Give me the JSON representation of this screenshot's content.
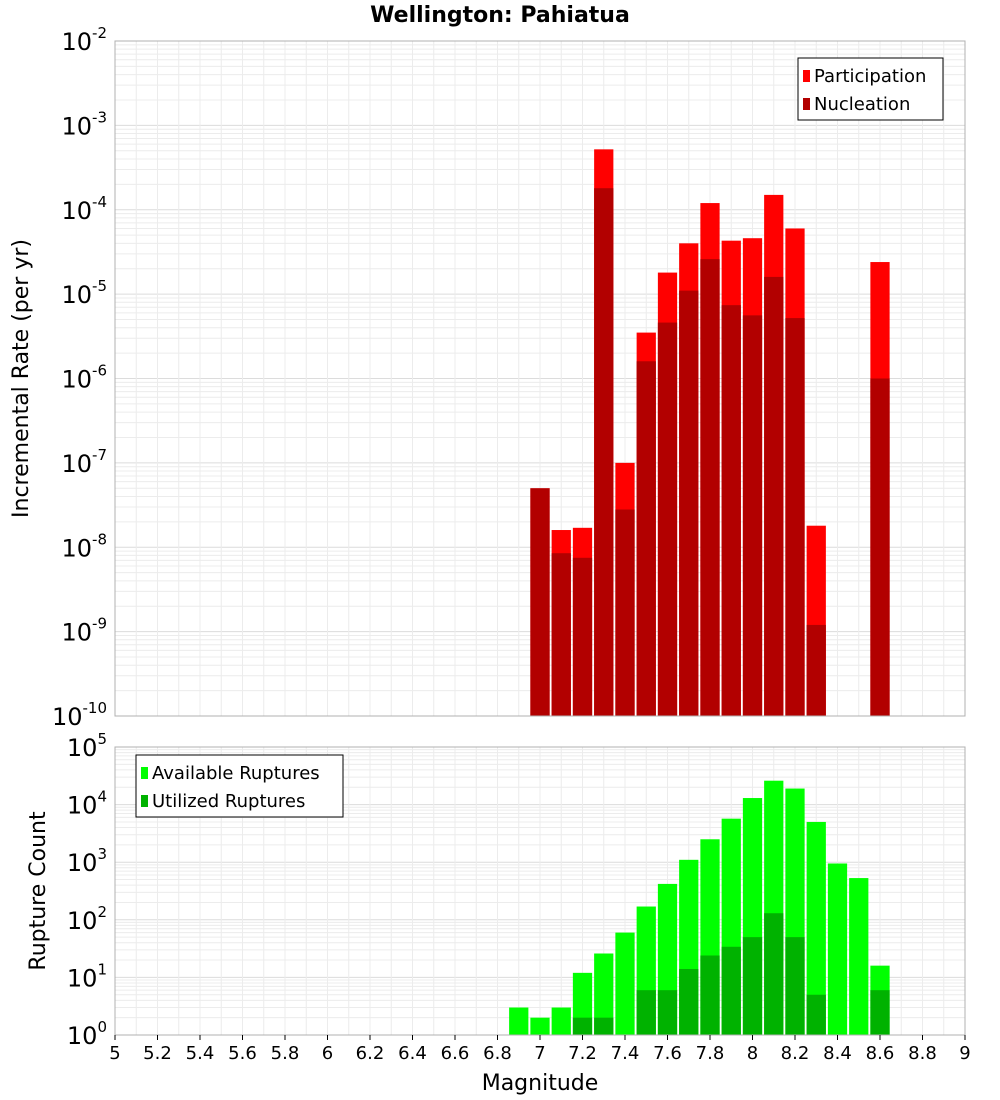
{
  "chart_data": [
    {
      "type": "bar",
      "title": "Wellington: Pahiatua",
      "ylabel": "Incremental Rate (per yr)",
      "xlabel": "",
      "yscale": "log",
      "ylim": [
        1e-10,
        0.01
      ],
      "xlim": [
        5,
        9
      ],
      "bin_width": 0.1,
      "grid": true,
      "legend_position": "top-right",
      "y_tick_exponents": [
        -10,
        -9,
        -8,
        -7,
        -6,
        -5,
        -4,
        -3,
        -2
      ],
      "x": [
        7.0,
        7.1,
        7.2,
        7.3,
        7.4,
        7.5,
        7.6,
        7.7,
        7.8,
        7.9,
        8.0,
        8.1,
        8.2,
        8.3,
        8.6
      ],
      "series": [
        {
          "name": "Participation",
          "color": "#ff0000",
          "values": [
            5e-08,
            1.6e-08,
            1.7e-08,
            0.00052,
            1e-07,
            3.5e-06,
            1.8e-05,
            4e-05,
            0.00012,
            4.3e-05,
            4.6e-05,
            0.00015,
            6e-05,
            1.8e-08,
            2.4e-05
          ]
        },
        {
          "name": "Nucleation",
          "color": "#b20000",
          "values": [
            5e-08,
            8.5e-09,
            7.5e-09,
            0.00018,
            2.8e-08,
            1.6e-06,
            4.6e-06,
            1.1e-05,
            2.6e-05,
            7.4e-06,
            5.6e-06,
            1.6e-05,
            5.2e-06,
            1.2e-09,
            1e-06
          ]
        }
      ]
    },
    {
      "type": "bar",
      "title": "",
      "ylabel": "Rupture Count",
      "xlabel": "Magnitude",
      "yscale": "log",
      "ylim": [
        1,
        100000
      ],
      "xlim": [
        5,
        9
      ],
      "bin_width": 0.1,
      "grid": true,
      "legend_position": "top-left",
      "y_tick_exponents": [
        0,
        1,
        2,
        3,
        4,
        5
      ],
      "x_tick_labels": [
        "5",
        "5.2",
        "5.4",
        "5.6",
        "5.8",
        "6",
        "6.2",
        "6.4",
        "6.6",
        "6.8",
        "7",
        "7.2",
        "7.4",
        "7.6",
        "7.8",
        "8",
        "8.2",
        "8.4",
        "8.6",
        "8.8",
        "9"
      ],
      "x": [
        6.9,
        7.0,
        7.1,
        7.2,
        7.3,
        7.4,
        7.5,
        7.6,
        7.7,
        7.8,
        7.9,
        8.0,
        8.1,
        8.2,
        8.3,
        8.4,
        8.5,
        8.6
      ],
      "series": [
        {
          "name": "Available Ruptures",
          "color": "#00ff00",
          "values": [
            3,
            2,
            3,
            12,
            26,
            60,
            170,
            420,
            1100,
            2500,
            5700,
            13000,
            26000,
            19000,
            5000,
            950,
            530,
            16
          ]
        },
        {
          "name": "Utilized Ruptures",
          "color": "#00b200",
          "values": [
            0,
            1,
            1,
            2,
            2,
            1,
            6,
            6,
            14,
            24,
            34,
            50,
            130,
            50,
            5,
            0,
            0,
            6
          ]
        }
      ]
    }
  ]
}
